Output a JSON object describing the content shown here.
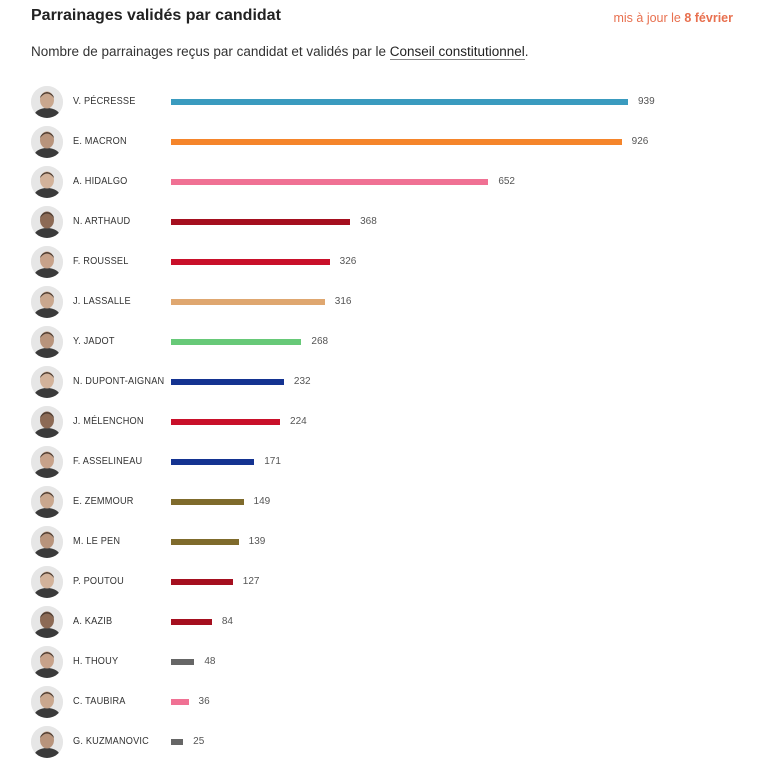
{
  "header": {
    "title": "Parrainages validés par candidat",
    "update_prefix": "mis à jour le ",
    "update_date": "8 février",
    "subtitle_before": "Nombre de parrainages reçus par candidat et validés par le ",
    "subtitle_link": "Conseil constitutionnel",
    "subtitle_after": "."
  },
  "chart_data": {
    "type": "bar",
    "orientation": "horizontal",
    "title": "Parrainages validés par candidat",
    "categories": [
      "V. PÉCRESSE",
      "E. MACRON",
      "A. HIDALGO",
      "N. ARTHAUD",
      "F. ROUSSEL",
      "J. LASSALLE",
      "Y. JADOT",
      "N. DUPONT-AIGNAN",
      "J. MÉLENCHON",
      "F. ASSELINEAU",
      "E. ZEMMOUR",
      "M. LE PEN",
      "P. POUTOU",
      "A. KAZIB",
      "H. THOUY",
      "C. TAUBIRA",
      "G. KUZMANOVIC"
    ],
    "values": [
      939,
      926,
      652,
      368,
      326,
      316,
      268,
      232,
      224,
      171,
      149,
      139,
      127,
      84,
      48,
      36,
      25
    ],
    "colors": [
      "#3a9bbf",
      "#f5852b",
      "#f07194",
      "#a50f1f",
      "#c9102a",
      "#dfa770",
      "#67c978",
      "#143391",
      "#c9102a",
      "#143391",
      "#7f6b2c",
      "#7f6b2c",
      "#a50f1f",
      "#a50f1f",
      "#666666",
      "#f07194",
      "#666666"
    ],
    "xlim": [
      0,
      939
    ],
    "grid": false,
    "legend": "none",
    "value_labels": true
  }
}
